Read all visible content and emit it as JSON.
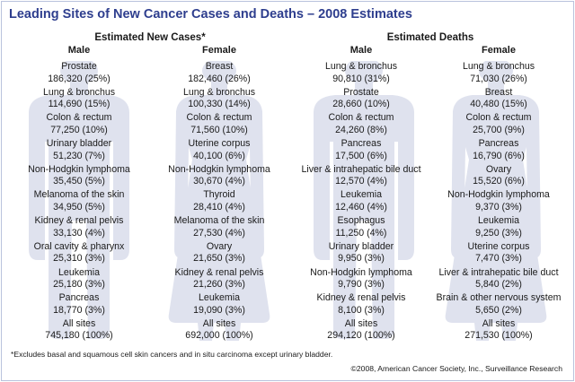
{
  "title": "Leading Sites of New Cancer Cases and Deaths – 2008 Estimates",
  "colors": {
    "title": "#2e3e8e",
    "silhouette": "#dfe2ee",
    "border": "#b9c3dd"
  },
  "sections": [
    {
      "heading": "Estimated New Cases*",
      "columns": [
        {
          "sex": "Male",
          "entries": [
            {
              "site": "Prostate",
              "value": "186,320 (25%)"
            },
            {
              "site": "Lung & bronchus",
              "value": "114,690 (15%)"
            },
            {
              "site": "Colon & rectum",
              "value": "77,250 (10%)"
            },
            {
              "site": "Urinary bladder",
              "value": "51,230 (7%)"
            },
            {
              "site": "Non-Hodgkin lymphoma",
              "value": "35,450 (5%)"
            },
            {
              "site": "Melanoma of the skin",
              "value": "34,950 (5%)"
            },
            {
              "site": "Kidney & renal pelvis",
              "value": "33,130 (4%)"
            },
            {
              "site": "Oral cavity & pharynx",
              "value": "25,310 (3%)"
            },
            {
              "site": "Leukemia",
              "value": "25,180 (3%)"
            },
            {
              "site": "Pancreas",
              "value": "18,770 (3%)"
            },
            {
              "site": "All sites",
              "value": "745,180  (100%)"
            }
          ]
        },
        {
          "sex": "Female",
          "entries": [
            {
              "site": "Breast",
              "value": "182,460 (26%)"
            },
            {
              "site": "Lung & bronchus",
              "value": "100,330 (14%)"
            },
            {
              "site": "Colon & rectum",
              "value": "71,560 (10%)"
            },
            {
              "site": "Uterine corpus",
              "value": "40,100 (6%)"
            },
            {
              "site": "Non-Hodgkin lymphoma",
              "value": "30,670 (4%)"
            },
            {
              "site": "Thyroid",
              "value": "28,410 (4%)"
            },
            {
              "site": "Melanoma of the skin",
              "value": "27,530 (4%)"
            },
            {
              "site": "Ovary",
              "value": "21,650 (3%)"
            },
            {
              "site": "Kidney & renal pelvis",
              "value": "21,260 (3%)"
            },
            {
              "site": "Leukemia",
              "value": "19,090 (3%)"
            },
            {
              "site": "All sites",
              "value": "692,000  (100%)"
            }
          ]
        }
      ]
    },
    {
      "heading": "Estimated Deaths",
      "columns": [
        {
          "sex": "Male",
          "entries": [
            {
              "site": "Lung & bronchus",
              "value": "90,810 (31%)"
            },
            {
              "site": "Prostate",
              "value": "28,660 (10%)"
            },
            {
              "site": "Colon & rectum",
              "value": "24,260 (8%)"
            },
            {
              "site": "Pancreas",
              "value": "17,500 (6%)"
            },
            {
              "site": "Liver & intrahepatic bile duct",
              "value": "12,570 (4%)"
            },
            {
              "site": "Leukemia",
              "value": "12,460 (4%)"
            },
            {
              "site": "Esophagus",
              "value": "11,250 (4%)"
            },
            {
              "site": "Urinary bladder",
              "value": "9,950 (3%)"
            },
            {
              "site": "Non-Hodgkin lymphoma",
              "value": "9,790 (3%)"
            },
            {
              "site": "Kidney & renal pelvis",
              "value": "8,100 (3%)"
            },
            {
              "site": "All sites",
              "value": "294,120 (100%)"
            }
          ]
        },
        {
          "sex": "Female",
          "entries": [
            {
              "site": "Lung & bronchus",
              "value": "71,030 (26%)"
            },
            {
              "site": "Breast",
              "value": "40,480 (15%)"
            },
            {
              "site": "Colon & rectum",
              "value": "25,700 (9%)"
            },
            {
              "site": "Pancreas",
              "value": "16,790 (6%)"
            },
            {
              "site": "Ovary",
              "value": "15,520 (6%)"
            },
            {
              "site": "Non-Hodgkin lymphoma",
              "value": "9,370 (3%)"
            },
            {
              "site": "Leukemia",
              "value": "9,250 (3%)"
            },
            {
              "site": "Uterine corpus",
              "value": "7,470 (3%)"
            },
            {
              "site": "Liver & intrahepatic bile duct",
              "value": "5,840 (2%)"
            },
            {
              "site": "Brain & other nervous system",
              "value": "5,650 (2%)"
            },
            {
              "site": "All sites",
              "value": "271,530  (100%)"
            }
          ]
        }
      ]
    }
  ],
  "footnote": "*Excludes basal and squamous cell skin cancers and in situ carcinoma except urinary bladder.",
  "credit": "©2008, American Cancer Society, Inc., Surveillance Research"
}
